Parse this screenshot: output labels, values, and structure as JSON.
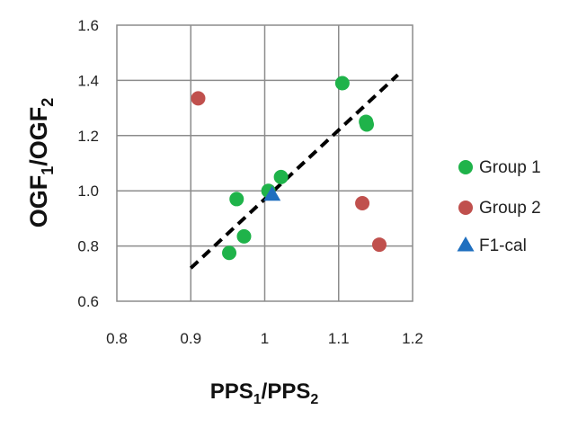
{
  "chart_data": {
    "type": "scatter",
    "xlabel": {
      "base": "PPS",
      "sub1": "1",
      "mid": "/PPS",
      "sub2": "2"
    },
    "ylabel": {
      "base": "OGF",
      "sub1": "1",
      "mid": "/OGF",
      "sub2": "2"
    },
    "xlim": [
      0.8,
      1.2
    ],
    "ylim": [
      0.6,
      1.6
    ],
    "x_ticks": [
      0.8,
      0.9,
      1.0,
      1.1,
      1.2
    ],
    "x_tick_labels": [
      "0.8",
      "0.9",
      "1",
      "1.1",
      "1.2"
    ],
    "y_ticks": [
      0.6,
      0.8,
      1.0,
      1.2,
      1.4,
      1.6
    ],
    "y_tick_labels": [
      "0.6",
      "0.8",
      "1.0",
      "1.2",
      "1.4",
      "1.6"
    ],
    "grid": true,
    "legend_position": "right",
    "series": [
      {
        "name": "Group 1",
        "marker": "circle",
        "color": "#1fb34a",
        "points": [
          {
            "x": 1.105,
            "y": 1.39
          },
          {
            "x": 1.137,
            "y": 1.25
          },
          {
            "x": 1.138,
            "y": 1.24
          },
          {
            "x": 1.022,
            "y": 1.05
          },
          {
            "x": 1.005,
            "y": 1.0
          },
          {
            "x": 0.962,
            "y": 0.97
          },
          {
            "x": 0.972,
            "y": 0.835
          },
          {
            "x": 0.952,
            "y": 0.775
          }
        ]
      },
      {
        "name": "Group 2",
        "marker": "circle",
        "color": "#c0504d",
        "points": [
          {
            "x": 0.91,
            "y": 1.335
          },
          {
            "x": 1.132,
            "y": 0.955
          },
          {
            "x": 1.155,
            "y": 0.805
          }
        ]
      },
      {
        "name": "F1-cal",
        "marker": "triangle",
        "color": "#1f6fbf",
        "points": [
          {
            "x": 1.01,
            "y": 0.985
          }
        ]
      }
    ],
    "trendline": {
      "style": "dashed",
      "color": "#000000",
      "x": [
        0.9,
        1.18
      ],
      "y": [
        0.72,
        1.42
      ]
    }
  }
}
